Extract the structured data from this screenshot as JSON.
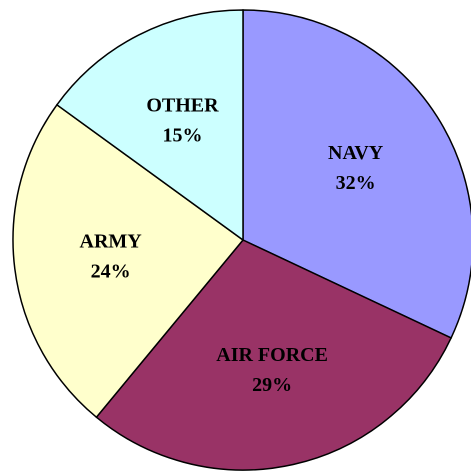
{
  "chart_data": {
    "type": "pie",
    "categories": [
      "NAVY",
      "AIR FORCE",
      "ARMY",
      "OTHER"
    ],
    "values": [
      32,
      29,
      24,
      15
    ],
    "value_labels": [
      "32%",
      "29%",
      "24%",
      "15%"
    ],
    "colors": [
      "#9999ff",
      "#993366",
      "#ffffcc",
      "#ccffff"
    ]
  }
}
